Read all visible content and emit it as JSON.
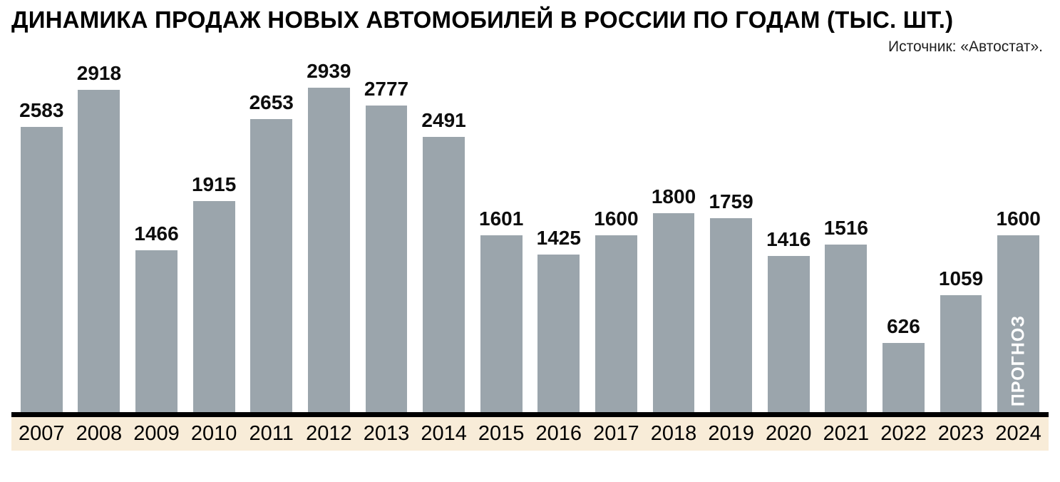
{
  "header": {
    "title": "ДИНАМИКА ПРОДАЖ НОВЫХ АВТОМОБИЛЕЙ В РОССИИ ПО ГОДАМ (ТЫС. ШТ.)",
    "source": "Источник: «Автостат»."
  },
  "colors": {
    "bar": "#9ba5ac",
    "axis_band": "#f8ecd8",
    "baseline": "#000000",
    "value_label": "#0d0d0d",
    "forecast_text": "#ffffff"
  },
  "chart_data": {
    "type": "bar",
    "title": "ДИНАМИКА ПРОДАЖ НОВЫХ АВТОМОБИЛЕЙ В РОССИИ ПО ГОДАМ (ТЫС. ШТ.)",
    "source": "Источник: «Автостат».",
    "xlabel": "",
    "ylabel": "",
    "ylim": [
      0,
      2939
    ],
    "grid": false,
    "legend": false,
    "categories": [
      "2007",
      "2008",
      "2009",
      "2010",
      "2011",
      "2012",
      "2013",
      "2014",
      "2015",
      "2016",
      "2017",
      "2018",
      "2019",
      "2020",
      "2021",
      "2022",
      "2023",
      "2024"
    ],
    "values": [
      2583,
      2918,
      1466,
      1915,
      2653,
      2939,
      2777,
      2491,
      1601,
      1425,
      1600,
      1800,
      1759,
      1416,
      1516,
      626,
      1059,
      1600
    ],
    "annotations": [
      {
        "category": "2024",
        "text": "ПРОГНОЗ"
      }
    ]
  }
}
